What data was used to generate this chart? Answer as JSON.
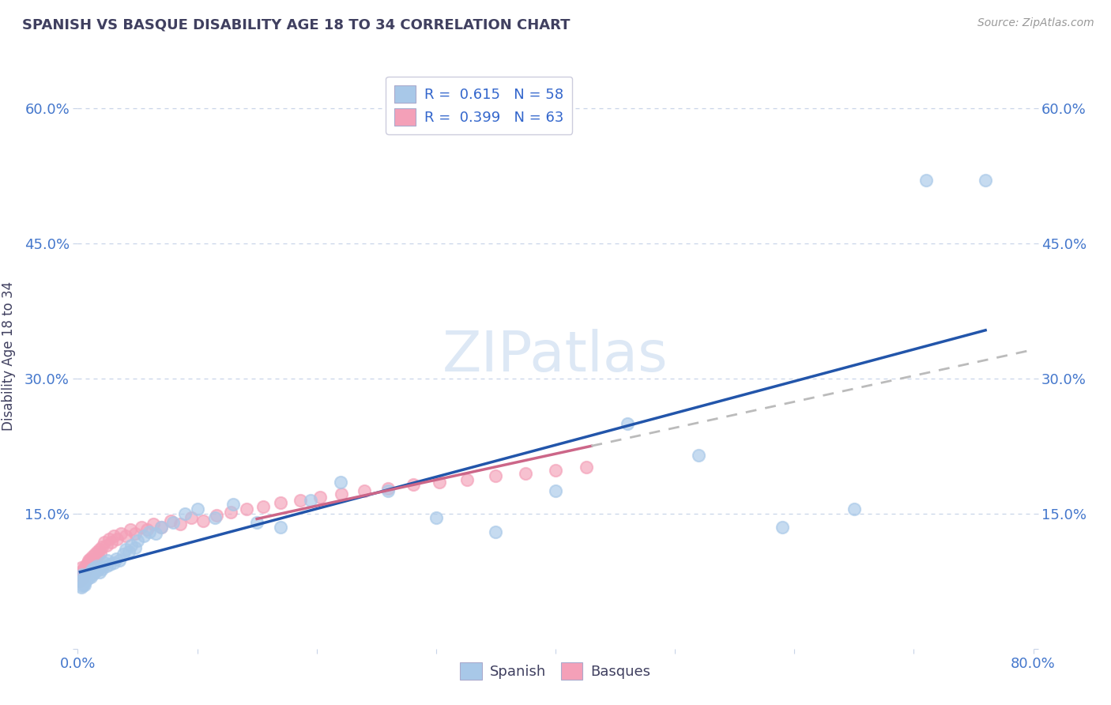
{
  "title": "SPANISH VS BASQUE DISABILITY AGE 18 TO 34 CORRELATION CHART",
  "source": "Source: ZipAtlas.com",
  "ylabel": "Disability Age 18 to 34",
  "xlim": [
    0.0,
    0.8
  ],
  "ylim": [
    0.0,
    0.65
  ],
  "xticks": [
    0.0,
    0.1,
    0.2,
    0.3,
    0.4,
    0.5,
    0.6,
    0.7,
    0.8
  ],
  "xticklabels": [
    "0.0%",
    "",
    "",
    "",
    "",
    "",
    "",
    "",
    "80.0%"
  ],
  "yticks": [
    0.0,
    0.15,
    0.3,
    0.45,
    0.6
  ],
  "yticklabels": [
    "",
    "15.0%",
    "30.0%",
    "45.0%",
    "60.0%"
  ],
  "r_spanish": 0.615,
  "n_spanish": 58,
  "r_basque": 0.399,
  "n_basque": 63,
  "spanish_color": "#a8c8e8",
  "basque_color": "#f4a0b8",
  "trend_spanish_color": "#2255aa",
  "trend_basque_color": "#cc6688",
  "trend_basque_dash_color": "#bbbbbb",
  "background_color": "#ffffff",
  "grid_color": "#c8d4e8",
  "title_color": "#404060",
  "tick_color": "#4477cc",
  "legend_r_color": "#3366cc",
  "legend_n_color": "#3399cc",
  "watermark_color": "#dde8f5",
  "spanish_x": [
    0.002,
    0.003,
    0.004,
    0.004,
    0.005,
    0.005,
    0.006,
    0.006,
    0.007,
    0.008,
    0.009,
    0.01,
    0.011,
    0.012,
    0.013,
    0.014,
    0.015,
    0.016,
    0.017,
    0.018,
    0.019,
    0.02,
    0.022,
    0.024,
    0.025,
    0.027,
    0.03,
    0.032,
    0.035,
    0.038,
    0.04,
    0.043,
    0.045,
    0.048,
    0.05,
    0.055,
    0.06,
    0.065,
    0.07,
    0.08,
    0.09,
    0.1,
    0.115,
    0.13,
    0.15,
    0.17,
    0.195,
    0.22,
    0.26,
    0.3,
    0.35,
    0.4,
    0.46,
    0.52,
    0.59,
    0.65,
    0.71,
    0.76
  ],
  "spanish_y": [
    0.075,
    0.068,
    0.082,
    0.07,
    0.072,
    0.078,
    0.071,
    0.08,
    0.076,
    0.082,
    0.079,
    0.085,
    0.08,
    0.088,
    0.083,
    0.09,
    0.086,
    0.092,
    0.088,
    0.085,
    0.09,
    0.088,
    0.095,
    0.092,
    0.098,
    0.094,
    0.095,
    0.1,
    0.098,
    0.105,
    0.11,
    0.108,
    0.115,
    0.112,
    0.12,
    0.125,
    0.13,
    0.128,
    0.135,
    0.14,
    0.15,
    0.155,
    0.145,
    0.16,
    0.14,
    0.135,
    0.165,
    0.185,
    0.175,
    0.145,
    0.13,
    0.175,
    0.25,
    0.215,
    0.135,
    0.155,
    0.52,
    0.52
  ],
  "basque_x": [
    0.001,
    0.002,
    0.002,
    0.003,
    0.003,
    0.004,
    0.004,
    0.005,
    0.005,
    0.006,
    0.006,
    0.007,
    0.007,
    0.008,
    0.008,
    0.009,
    0.01,
    0.01,
    0.011,
    0.012,
    0.013,
    0.014,
    0.015,
    0.016,
    0.017,
    0.018,
    0.019,
    0.02,
    0.022,
    0.024,
    0.026,
    0.028,
    0.03,
    0.033,
    0.036,
    0.04,
    0.044,
    0.048,
    0.053,
    0.058,
    0.063,
    0.07,
    0.078,
    0.086,
    0.095,
    0.105,
    0.116,
    0.128,
    0.141,
    0.155,
    0.17,
    0.186,
    0.203,
    0.221,
    0.24,
    0.26,
    0.281,
    0.303,
    0.326,
    0.35,
    0.375,
    0.4,
    0.426
  ],
  "basque_y": [
    0.08,
    0.075,
    0.085,
    0.08,
    0.09,
    0.085,
    0.078,
    0.088,
    0.082,
    0.09,
    0.085,
    0.093,
    0.088,
    0.095,
    0.09,
    0.098,
    0.092,
    0.1,
    0.095,
    0.102,
    0.098,
    0.105,
    0.1,
    0.108,
    0.103,
    0.11,
    0.106,
    0.113,
    0.118,
    0.115,
    0.122,
    0.118,
    0.125,
    0.122,
    0.128,
    0.125,
    0.132,
    0.128,
    0.135,
    0.132,
    0.138,
    0.135,
    0.142,
    0.138,
    0.145,
    0.142,
    0.148,
    0.152,
    0.155,
    0.158,
    0.162,
    0.165,
    0.168,
    0.172,
    0.175,
    0.178,
    0.182,
    0.185,
    0.188,
    0.192,
    0.195,
    0.198,
    0.202
  ]
}
